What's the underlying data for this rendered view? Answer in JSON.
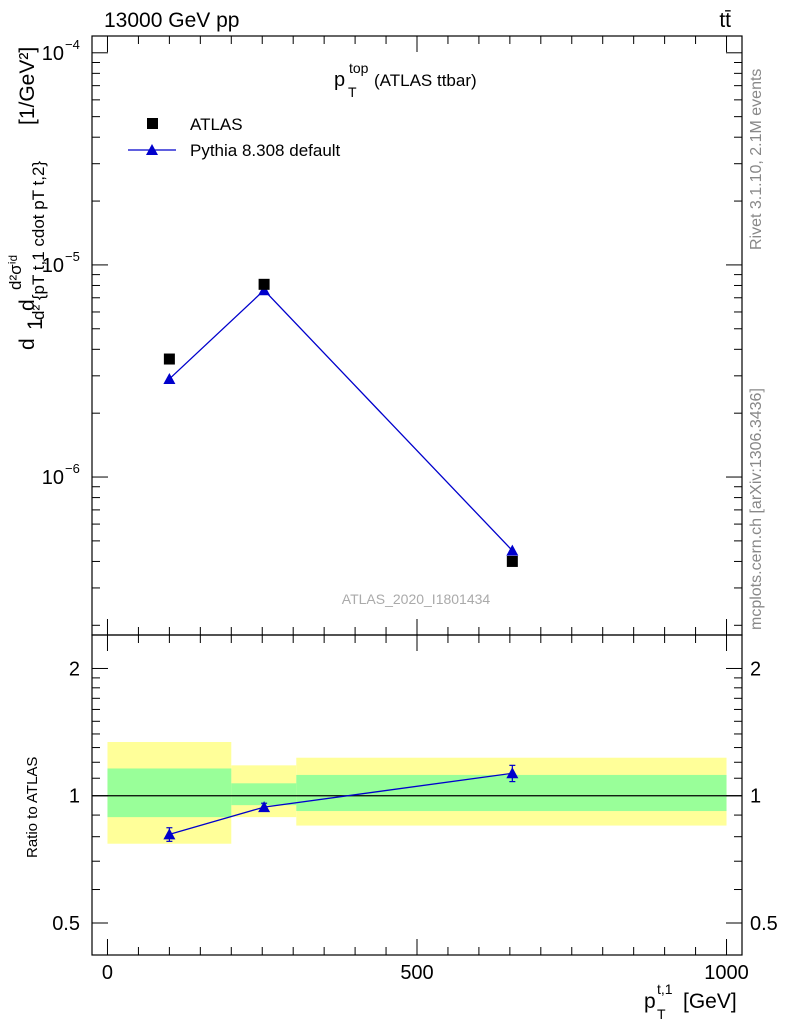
{
  "header": {
    "energy_label": "13000 GeV pp",
    "process_label": "tt̄"
  },
  "side_text": {
    "rivet": "Rivet 3.1.10,  2.1M events",
    "source": "mcplots.cern.ch [arXiv:1306.3436]"
  },
  "title": {
    "main": "p",
    "sup": "top",
    "sub": "T",
    "rest": " (ATLAS ttbar)"
  },
  "watermark": "ATLAS_2020_I1801434",
  "legend": {
    "data_label": "ATLAS",
    "mc_label": "Pythia 8.308 default"
  },
  "y_axis_top_label": "d²σⁱᵈ / (d²{pT^t,1 cdot pT^t,2}) · 1/σ dσ [1/GeV²]",
  "y_axis_ratio_label": "Ratio to ATLAS",
  "x_axis_label": "p_T^{t,1} [GeV]",
  "colors": {
    "mc": "#0000cc",
    "band_inner": "#99ff99",
    "band_outer": "#ffff99",
    "watermark": "#aaaaaa"
  },
  "chart_data": [
    {
      "type": "scatter",
      "panel": "main",
      "yscale": "log",
      "ylim": [
        1.8e-07,
        0.00012
      ],
      "xlim": [
        -25,
        1025
      ],
      "yticks_labeled": [
        "10^{-6}",
        "10^{-5}",
        "10^{-4}"
      ],
      "series": [
        {
          "name": "ATLAS",
          "x": [
            100,
            253,
            654
          ],
          "y": [
            3.6e-06,
            8.1e-06,
            4e-07
          ]
        },
        {
          "name": "Pythia 8.308 default",
          "x": [
            100,
            253,
            654
          ],
          "y": [
            2.9e-06,
            7.6e-06,
            4.5e-07
          ],
          "yerr": [
            5e-08,
            1.5e-07,
            3e-09
          ]
        }
      ]
    },
    {
      "type": "line",
      "panel": "ratio",
      "yscale": "log",
      "ylim": [
        0.42,
        2.4
      ],
      "xlim": [
        -25,
        1025
      ],
      "xticks": [
        "0",
        "500",
        "1000"
      ],
      "yticks": [
        "0.5",
        "1",
        "2"
      ],
      "bands": [
        {
          "xlo": 0,
          "xhi": 200,
          "inner": [
            0.89,
            1.16
          ],
          "outer": [
            0.77,
            1.34
          ]
        },
        {
          "xlo": 200,
          "xhi": 305,
          "inner": [
            0.95,
            1.07
          ],
          "outer": [
            0.89,
            1.18
          ]
        },
        {
          "xlo": 305,
          "xhi": 1000,
          "inner": [
            0.92,
            1.12
          ],
          "outer": [
            0.85,
            1.23
          ]
        }
      ],
      "series": [
        {
          "name": "Pythia 8.308 default",
          "x": [
            100,
            253,
            654
          ],
          "y": [
            0.81,
            0.94,
            1.13
          ],
          "yerr": [
            0.03,
            0.02,
            0.05
          ]
        }
      ]
    }
  ]
}
